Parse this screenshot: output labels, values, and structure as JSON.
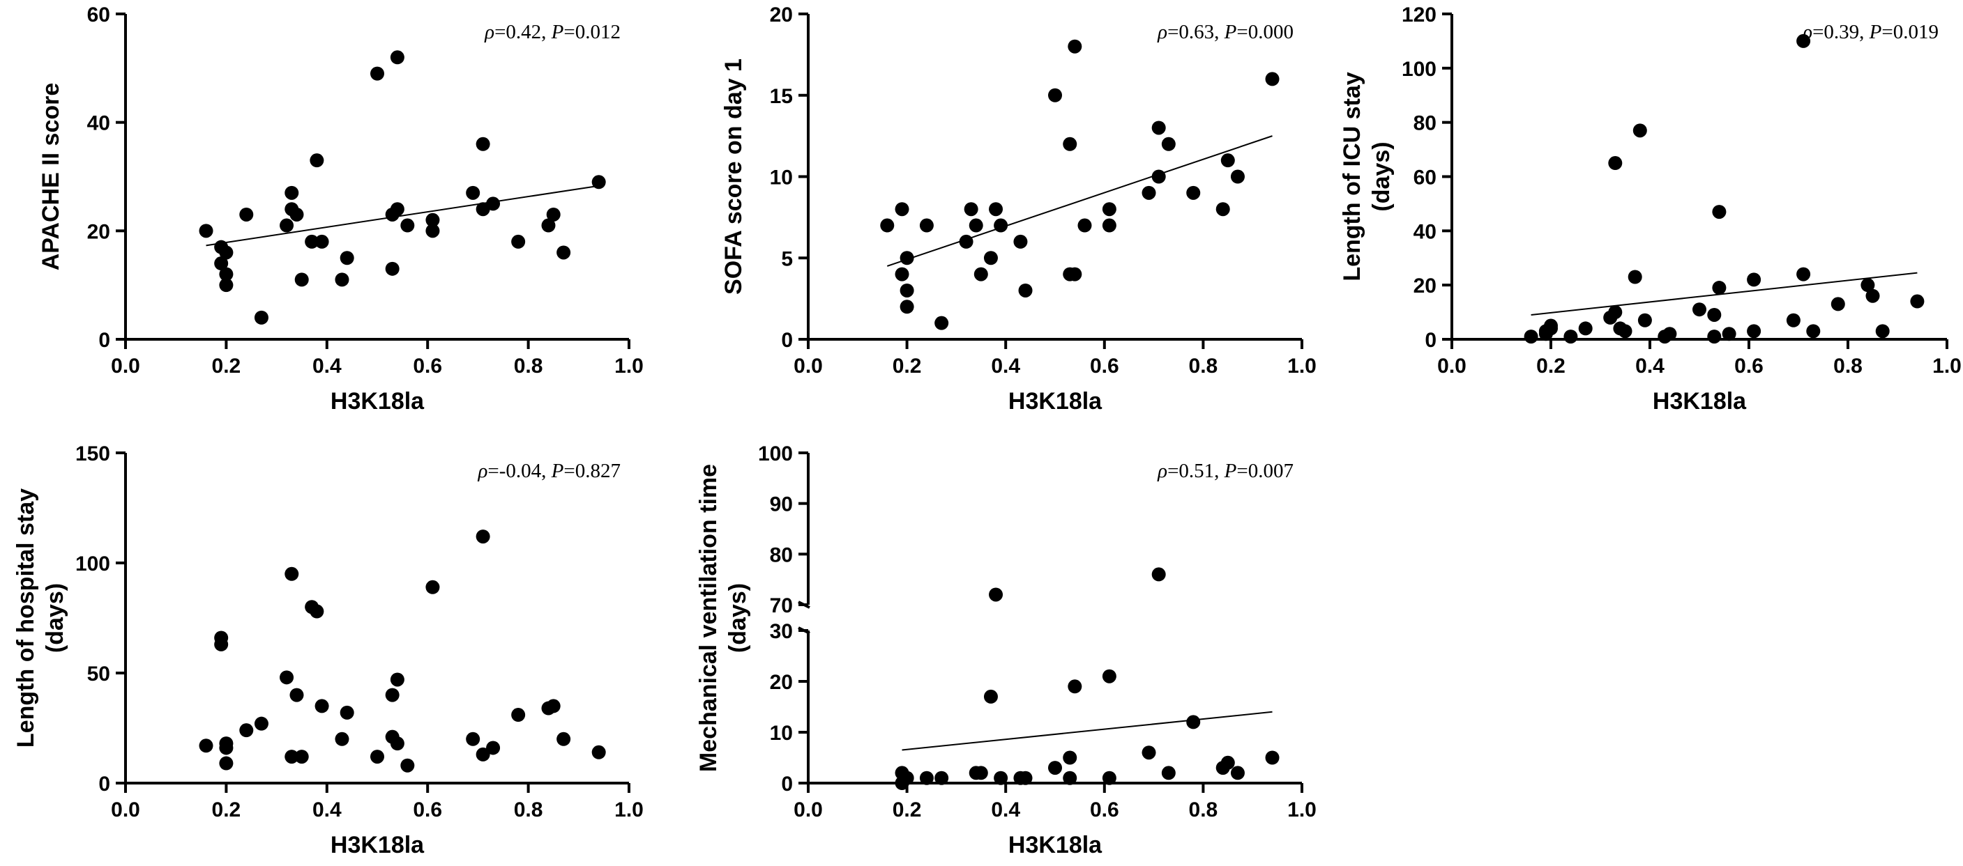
{
  "chart_data": [
    {
      "id": "apache",
      "type": "scatter",
      "title": "",
      "xlabel": "H3K18la",
      "ylabel": [
        "APACHE II score"
      ],
      "xlim": [
        0.0,
        1.0
      ],
      "ylim": [
        0,
        60
      ],
      "xticks": [
        0.0,
        0.2,
        0.4,
        0.6,
        0.8,
        1.0
      ],
      "xtick_labels": [
        "0.0",
        "0.2",
        "0.4",
        "0.6",
        "0.8",
        "1.0"
      ],
      "yticks": [
        0,
        20,
        40,
        60
      ],
      "ytick_labels": [
        "0",
        "20",
        "40",
        "60"
      ],
      "annotation": {
        "rho_symbol": "ρ",
        "rho": "=0.42, ",
        "p_symbol": "P",
        "p": "=0.012"
      },
      "trendline": {
        "x": [
          0.16,
          0.94
        ],
        "y": [
          17.3,
          28.3
        ]
      },
      "x": [
        0.16,
        0.19,
        0.19,
        0.2,
        0.2,
        0.2,
        0.24,
        0.27,
        0.32,
        0.33,
        0.33,
        0.34,
        0.35,
        0.37,
        0.38,
        0.39,
        0.43,
        0.44,
        0.5,
        0.53,
        0.53,
        0.54,
        0.54,
        0.56,
        0.61,
        0.61,
        0.69,
        0.71,
        0.71,
        0.73,
        0.78,
        0.84,
        0.85,
        0.87,
        0.94
      ],
      "y": [
        20,
        17,
        14,
        16,
        12,
        10,
        23,
        4,
        21,
        24,
        27,
        23,
        11,
        18,
        33,
        18,
        11,
        15,
        49,
        23,
        13,
        52,
        24,
        21,
        22,
        20,
        27,
        36,
        24,
        25,
        18,
        21,
        23,
        16,
        29
      ]
    },
    {
      "id": "sofa",
      "type": "scatter",
      "title": "",
      "xlabel": "H3K18la",
      "ylabel": [
        "SOFA score on day 1"
      ],
      "xlim": [
        0.0,
        1.0
      ],
      "ylim": [
        0,
        20
      ],
      "xticks": [
        0.0,
        0.2,
        0.4,
        0.6,
        0.8,
        1.0
      ],
      "xtick_labels": [
        "0.0",
        "0.2",
        "0.4",
        "0.6",
        "0.8",
        "1.0"
      ],
      "yticks": [
        0,
        5,
        10,
        15,
        20
      ],
      "ytick_labels": [
        "0",
        "5",
        "10",
        "15",
        "20"
      ],
      "annotation": {
        "rho_symbol": "ρ",
        "rho": "=0.63, ",
        "p_symbol": "P",
        "p": "=0.000"
      },
      "trendline": {
        "x": [
          0.16,
          0.94
        ],
        "y": [
          4.5,
          12.5
        ]
      },
      "x": [
        0.16,
        0.19,
        0.19,
        0.2,
        0.2,
        0.2,
        0.24,
        0.27,
        0.32,
        0.33,
        0.34,
        0.35,
        0.37,
        0.38,
        0.39,
        0.43,
        0.44,
        0.5,
        0.53,
        0.53,
        0.54,
        0.54,
        0.56,
        0.61,
        0.61,
        0.69,
        0.71,
        0.71,
        0.73,
        0.78,
        0.84,
        0.85,
        0.87,
        0.94
      ],
      "y": [
        7,
        8,
        4,
        5,
        3,
        2,
        7,
        1,
        6,
        8,
        7,
        4,
        5,
        8,
        7,
        6,
        3,
        15,
        12,
        4,
        18,
        4,
        7,
        8,
        7,
        9,
        13,
        10,
        12,
        9,
        8,
        11,
        10,
        16
      ]
    },
    {
      "id": "icu",
      "type": "scatter",
      "title": "",
      "xlabel": "H3K18la",
      "ylabel": [
        "Length of ICU stay",
        "(days)"
      ],
      "xlim": [
        0.0,
        1.0
      ],
      "ylim": [
        0,
        120
      ],
      "xticks": [
        0.0,
        0.2,
        0.4,
        0.6,
        0.8,
        1.0
      ],
      "xtick_labels": [
        "0.0",
        "0.2",
        "0.4",
        "0.6",
        "0.8",
        "1.0"
      ],
      "yticks": [
        0,
        20,
        40,
        60,
        80,
        100,
        120
      ],
      "ytick_labels": [
        "0",
        "20",
        "40",
        "60",
        "80",
        "100",
        "120"
      ],
      "annotation": {
        "rho_symbol": "ρ",
        "rho": "=0.39, ",
        "p_symbol": "P",
        "p": "=0.019"
      },
      "trendline": {
        "x": [
          0.16,
          0.94
        ],
        "y": [
          9,
          24.5
        ]
      },
      "x": [
        0.16,
        0.19,
        0.19,
        0.2,
        0.2,
        0.24,
        0.27,
        0.32,
        0.33,
        0.33,
        0.34,
        0.35,
        0.37,
        0.38,
        0.39,
        0.43,
        0.44,
        0.5,
        0.53,
        0.53,
        0.54,
        0.54,
        0.56,
        0.61,
        0.61,
        0.69,
        0.71,
        0.71,
        0.73,
        0.78,
        0.84,
        0.85,
        0.87,
        0.94
      ],
      "y": [
        1,
        3,
        2,
        5,
        4,
        1,
        4,
        8,
        65,
        10,
        4,
        3,
        23,
        77,
        7,
        1,
        2,
        11,
        9,
        1,
        47,
        19,
        2,
        3,
        22,
        7,
        110,
        24,
        3,
        13,
        20,
        16,
        3,
        14
      ]
    },
    {
      "id": "hospital",
      "type": "scatter",
      "title": "",
      "xlabel": "H3K18la",
      "ylabel": [
        "Length of hospital stay",
        "(days)"
      ],
      "xlim": [
        0.0,
        1.0
      ],
      "ylim": [
        0,
        150
      ],
      "xticks": [
        0.0,
        0.2,
        0.4,
        0.6,
        0.8,
        1.0
      ],
      "xtick_labels": [
        "0.0",
        "0.2",
        "0.4",
        "0.6",
        "0.8",
        "1.0"
      ],
      "yticks": [
        0,
        50,
        100,
        150
      ],
      "ytick_labels": [
        "0",
        "50",
        "100",
        "150"
      ],
      "annotation": {
        "rho_symbol": "ρ",
        "rho": "=-0.04, ",
        "p_symbol": "P",
        "p": "=0.827"
      },
      "x": [
        0.16,
        0.19,
        0.19,
        0.2,
        0.2,
        0.2,
        0.24,
        0.27,
        0.32,
        0.33,
        0.33,
        0.34,
        0.35,
        0.37,
        0.38,
        0.39,
        0.43,
        0.44,
        0.5,
        0.53,
        0.53,
        0.54,
        0.54,
        0.56,
        0.61,
        0.69,
        0.71,
        0.71,
        0.73,
        0.78,
        0.84,
        0.85,
        0.87,
        0.94
      ],
      "y": [
        17,
        66,
        63,
        18,
        16,
        9,
        24,
        27,
        48,
        12,
        95,
        40,
        12,
        80,
        78,
        35,
        20,
        32,
        12,
        40,
        21,
        47,
        18,
        8,
        89,
        20,
        112,
        13,
        16,
        31,
        34,
        35,
        20,
        14
      ]
    },
    {
      "id": "ventilation",
      "type": "scatter",
      "title": "",
      "xlabel": "H3K18la",
      "ylabel": [
        "Mechanical ventilation time",
        "(days)"
      ],
      "xlim": [
        0.0,
        1.0
      ],
      "ylim_lower": [
        0,
        30
      ],
      "ylim_upper": [
        70,
        100
      ],
      "axis_break": [
        30,
        70
      ],
      "xticks": [
        0.0,
        0.2,
        0.4,
        0.6,
        0.8,
        1.0
      ],
      "xtick_labels": [
        "0.0",
        "0.2",
        "0.4",
        "0.6",
        "0.8",
        "1.0"
      ],
      "yticks_lower": [
        0,
        10,
        20,
        30
      ],
      "ytick_labels_lower": [
        "0",
        "10",
        "20",
        "30"
      ],
      "yticks_upper": [
        70,
        80,
        90,
        100
      ],
      "ytick_labels_upper": [
        "70",
        "80",
        "90",
        "100"
      ],
      "annotation": {
        "rho_symbol": "ρ",
        "rho": "=0.51, ",
        "p_symbol": "P",
        "p": "=0.007"
      },
      "trendline": {
        "x": [
          0.19,
          0.94
        ],
        "y": [
          6.5,
          14
        ]
      },
      "x": [
        0.19,
        0.19,
        0.2,
        0.2,
        0.24,
        0.27,
        0.34,
        0.35,
        0.37,
        0.38,
        0.39,
        0.43,
        0.44,
        0.5,
        0.53,
        0.53,
        0.54,
        0.61,
        0.61,
        0.69,
        0.71,
        0.73,
        0.78,
        0.84,
        0.85,
        0.87,
        0.94
      ],
      "y": [
        2,
        0,
        1,
        1,
        1,
        1,
        2,
        2,
        17,
        72,
        1,
        1,
        1,
        3,
        5,
        1,
        19,
        21,
        1,
        6,
        76,
        2,
        12,
        3,
        4,
        2,
        5
      ]
    }
  ]
}
